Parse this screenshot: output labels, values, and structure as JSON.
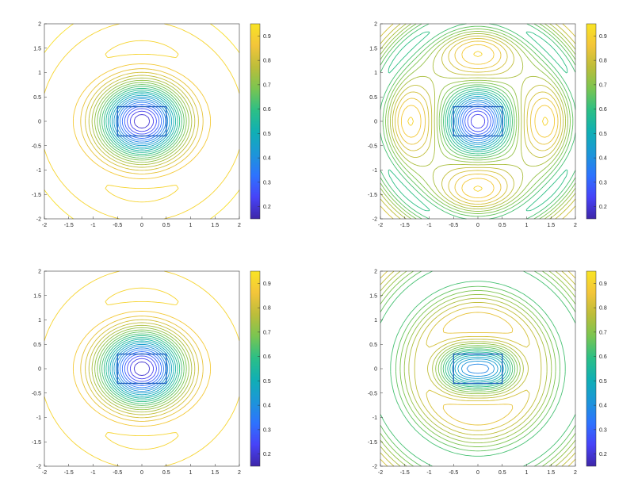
{
  "colors": {
    "axis": "#333333",
    "rectangle": "#1f5fbf",
    "colormap": [
      "#3e26a8",
      "#4743f8",
      "#2d73fe",
      "#1c96d8",
      "#10afb4",
      "#2bbf86",
      "#79c551",
      "#bcbd3a",
      "#f3c53a",
      "#f9e424"
    ]
  },
  "chart_data": [
    {
      "type": "contour",
      "xlim": [
        -2,
        2
      ],
      "ylim": [
        -2,
        2
      ],
      "x_ticks": [
        "-2",
        "-1.5",
        "-1",
        "-0.5",
        "0",
        "0.5",
        "1",
        "1.5",
        "2"
      ],
      "y_ticks": [
        "2",
        "1.5",
        "1",
        "0.5",
        "0",
        "-0.5",
        "-1",
        "-1.5",
        "-2"
      ],
      "colorbar_ticks": [
        "0.9",
        "0.8",
        "0.7",
        "0.6",
        "0.5",
        "0.4",
        "0.3",
        "0.2"
      ],
      "colorbar_range": [
        0.15,
        0.95
      ],
      "rectangle": {
        "x": [
          -0.5,
          0.5
        ],
        "y": [
          -0.3,
          0.3
        ]
      },
      "grid": false,
      "pattern": "single-well"
    },
    {
      "type": "contour",
      "xlim": [
        -2,
        2
      ],
      "ylim": [
        -2,
        2
      ],
      "x_ticks": [
        "-2",
        "-1.5",
        "-1",
        "-0.5",
        "0",
        "0.5",
        "1",
        "1.5",
        "2"
      ],
      "y_ticks": [
        "2",
        "1.5",
        "1",
        "0.5",
        "0",
        "-0.5",
        "-1",
        "-1.5",
        "-2"
      ],
      "colorbar_ticks": [
        "0.9",
        "0.8",
        "0.7",
        "0.6",
        "0.5",
        "0.4",
        "0.3",
        "0.2"
      ],
      "colorbar_range": [
        0.15,
        0.95
      ],
      "rectangle": {
        "x": [
          -0.5,
          0.5
        ],
        "y": [
          -0.3,
          0.3
        ]
      },
      "grid": false,
      "pattern": "oscillating-lobes"
    },
    {
      "type": "contour",
      "xlim": [
        -2,
        2
      ],
      "ylim": [
        -2,
        2
      ],
      "x_ticks": [
        "-2",
        "-1.5",
        "-1",
        "-0.5",
        "0",
        "0.5",
        "1",
        "1.5",
        "2"
      ],
      "y_ticks": [
        "2",
        "1.5",
        "1",
        "0.5",
        "0",
        "-0.5",
        "-1",
        "-1.5",
        "-2"
      ],
      "colorbar_ticks": [
        "0.9",
        "0.8",
        "0.7",
        "0.6",
        "0.5",
        "0.4",
        "0.3",
        "0.2"
      ],
      "colorbar_range": [
        0.15,
        0.95
      ],
      "rectangle": {
        "x": [
          -0.5,
          0.5
        ],
        "y": [
          -0.3,
          0.3
        ]
      },
      "grid": false,
      "pattern": "single-well-flat"
    },
    {
      "type": "contour",
      "xlim": [
        -2,
        2
      ],
      "ylim": [
        -2,
        2
      ],
      "x_ticks": [
        "-2",
        "-1.5",
        "-1",
        "-0.5",
        "0",
        "0.5",
        "1",
        "1.5",
        "2"
      ],
      "y_ticks": [
        "2",
        "1.5",
        "1",
        "0.5",
        "0",
        "-0.5",
        "-1",
        "-1.5",
        "-2"
      ],
      "colorbar_ticks": [
        "0.9",
        "0.8",
        "0.7",
        "0.6",
        "0.5",
        "0.4",
        "0.3",
        "0.2"
      ],
      "colorbar_range": [
        0.15,
        0.95
      ],
      "rectangle": {
        "x": [
          -0.5,
          0.5
        ],
        "y": [
          -0.3,
          0.3
        ]
      },
      "grid": false,
      "pattern": "double-well"
    }
  ]
}
